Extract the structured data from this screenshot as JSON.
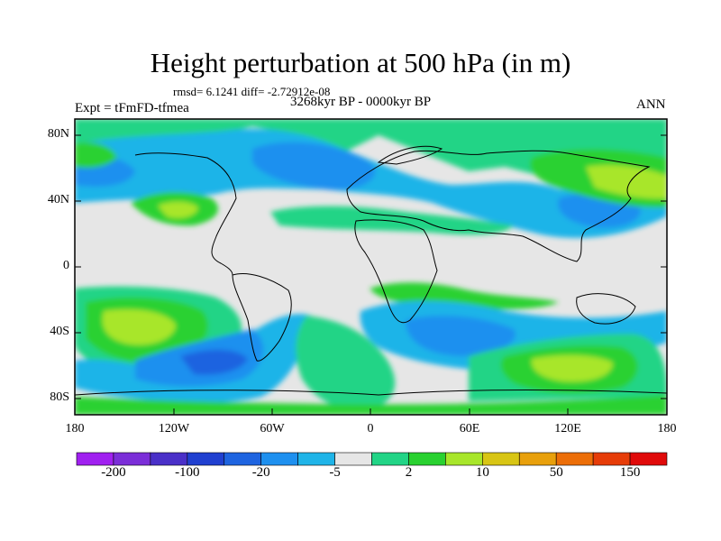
{
  "header": {
    "title": "Height perturbation at 500 hPa (in m)",
    "stats": "rmsd= 6.1241 diff= -2.72912e-08",
    "period": "3268kyr BP - 0000kyr BP",
    "experiment": "Expt = tFmFD-tfmea",
    "season": "ANN"
  },
  "axes": {
    "latitude_labels": [
      "80N",
      "40N",
      "0",
      "40S",
      "80S"
    ],
    "longitude_labels": [
      "180",
      "120W",
      "60W",
      "0",
      "60E",
      "120E",
      "180"
    ]
  },
  "colorbar": {
    "labels": [
      "-200",
      "-100",
      "-20",
      "-5",
      "2",
      "10",
      "50",
      "150"
    ],
    "colors": [
      "#a020f0",
      "#7b2ed8",
      "#4a30c8",
      "#2040d0",
      "#1e64e0",
      "#1e90ef",
      "#1fb4e8",
      "#e6e6e6",
      "#22d486",
      "#29d130",
      "#a8e62a",
      "#d8c514",
      "#e8a00c",
      "#ec6e08",
      "#e63c08",
      "#e00a0a"
    ]
  },
  "map_colors": {
    "neutral": "#e6e6e6",
    "light_green": "#22d486",
    "green": "#29d130",
    "yellow_green": "#a8e62a",
    "yellow": "#d8c514",
    "cyan": "#1fb4e8",
    "light_blue": "#1e90ef",
    "blue": "#1e64e0",
    "dark_blue": "#2040d0"
  }
}
